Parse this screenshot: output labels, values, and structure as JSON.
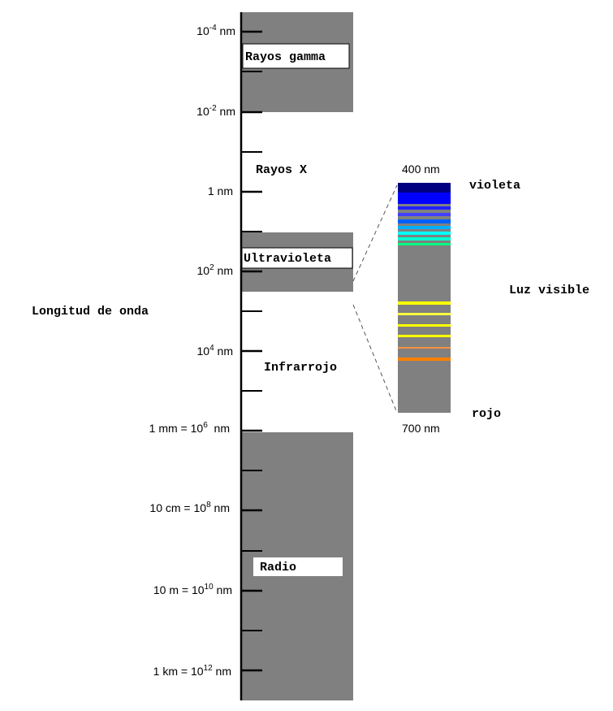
{
  "axis_label": "Longitud de onda",
  "ticks": [
    {
      "base": "10",
      "exp": "-4",
      "suffix": " nm"
    },
    {
      "base": "10",
      "exp": "-2",
      "suffix": " nm"
    },
    {
      "text": "1 nm"
    },
    {
      "base": "10",
      "exp": "2",
      "suffix": " nm"
    },
    {
      "base": "10",
      "exp": "4",
      "suffix": " nm"
    },
    {
      "prefix": "1 mm = ",
      "base": "10",
      "exp": "6",
      "suffix": "  nm"
    },
    {
      "prefix": "10 cm = ",
      "base": "10",
      "exp": "8",
      "suffix": " nm"
    },
    {
      "prefix": "10 m = ",
      "base": "10",
      "exp": "10",
      "suffix": " nm"
    },
    {
      "prefix": "1 km = ",
      "base": "10",
      "exp": "12",
      "suffix": " nm"
    }
  ],
  "bands": [
    {
      "label": "Rayos gamma",
      "boxed": true
    },
    {
      "label": "Rayos X",
      "boxed": false
    },
    {
      "label": "Ultravioleta",
      "boxed": true
    },
    {
      "label": "Infrarrojo",
      "boxed": false
    },
    {
      "label": "Radio",
      "boxed": true
    }
  ],
  "visible": {
    "label": "Luz visible",
    "top_value": "400 nm",
    "bottom_value": "700 nm",
    "top_color": "violeta",
    "bottom_color": "rojo",
    "colors": {
      "band_gray": "#808080",
      "dark_violet": "#000080",
      "blue": "#0000ff",
      "cyan": "#00ffff",
      "green": "#00ff80",
      "yellow": "#ffff00",
      "orange": "#ff8000"
    }
  }
}
